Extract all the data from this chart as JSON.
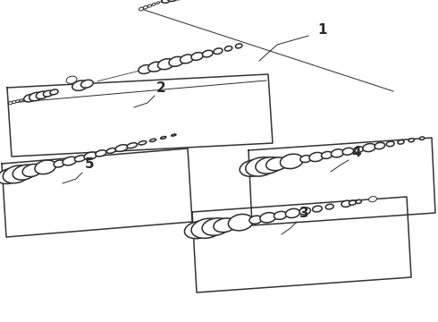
{
  "bg_color": "#ffffff",
  "line_color": "#2a2a2a",
  "border_color": "#333333",
  "fig_width": 4.9,
  "fig_height": 3.6,
  "dpi": 100
}
